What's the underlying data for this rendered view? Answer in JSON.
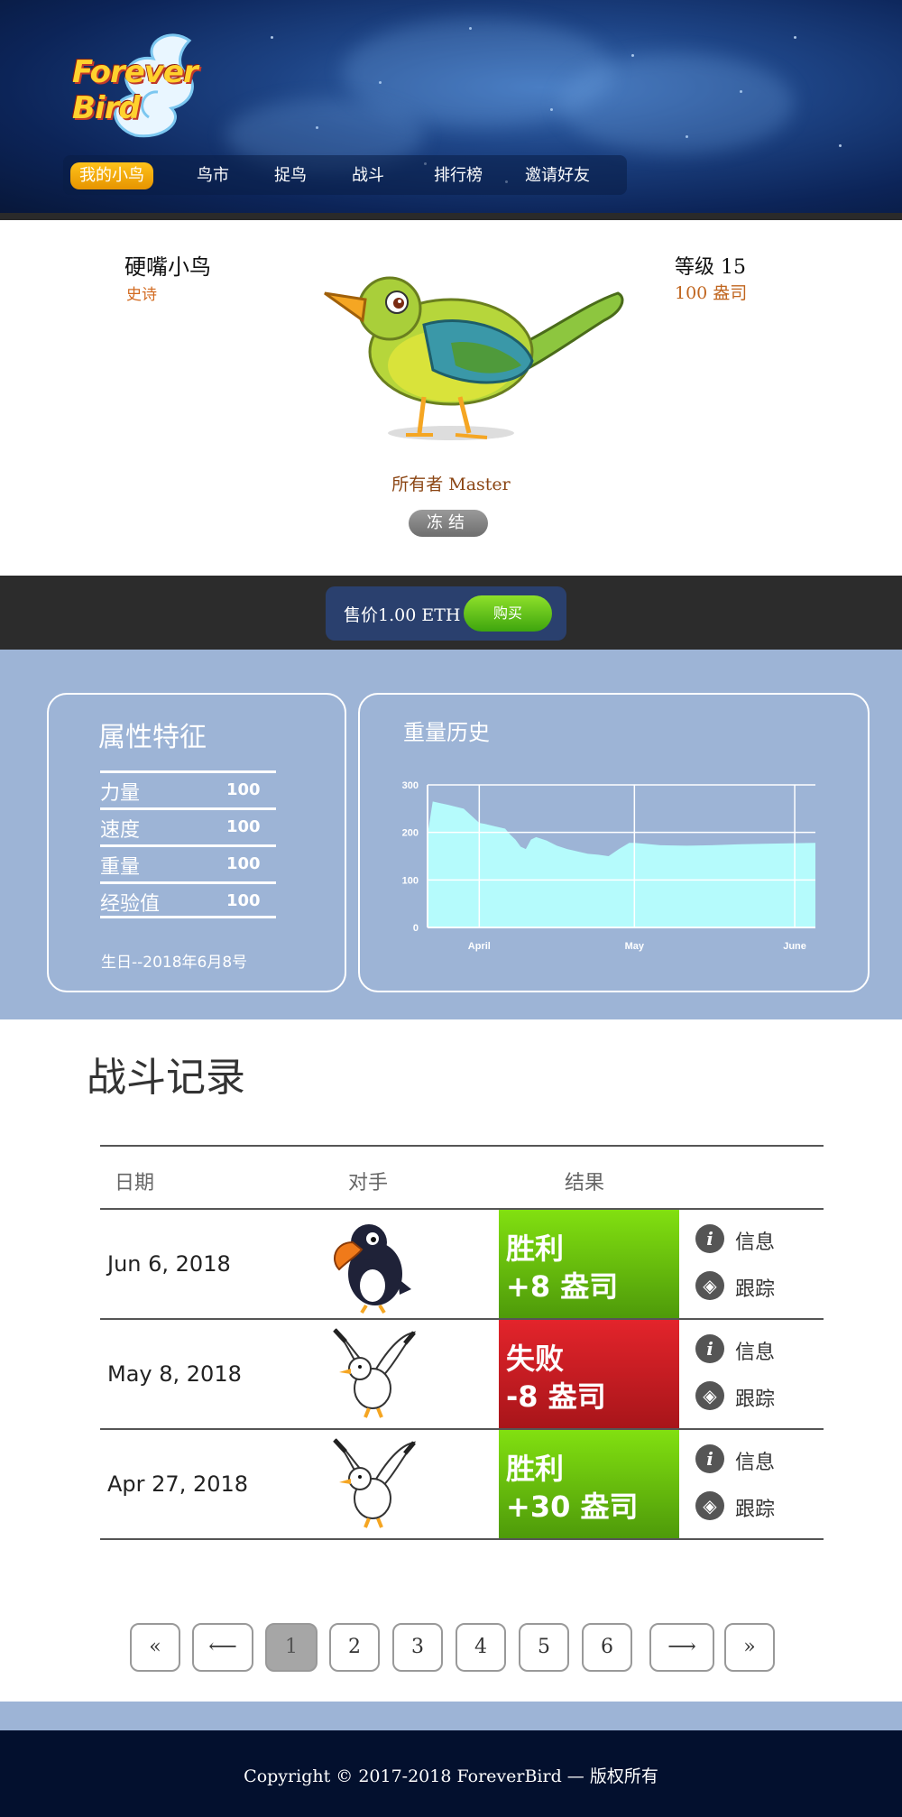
{
  "header": {
    "logo_text": "Forever Bird",
    "nav": [
      {
        "label": "我的小鸟",
        "active": true
      },
      {
        "label": "鸟市"
      },
      {
        "label": "捉鸟"
      },
      {
        "label": "战斗"
      },
      {
        "label": "排行榜"
      },
      {
        "label": "邀请好友"
      }
    ]
  },
  "bird": {
    "name": "硬嘴小鸟",
    "rarity": "史诗",
    "level_text": "等级 15",
    "coin_text": "100 盎司",
    "owner_text": "所有者 Master",
    "freeze_label": "冻结"
  },
  "sale": {
    "price_text": "售价1.00 ETH",
    "buy_label": "购买"
  },
  "attributes": {
    "title": "属性特征",
    "rows": [
      {
        "label": "力量",
        "value": "100"
      },
      {
        "label": "速度",
        "value": "100"
      },
      {
        "label": "重量",
        "value": "100"
      },
      {
        "label": "经验值",
        "value": "100"
      }
    ],
    "birthday": "生日--2018年6月8号"
  },
  "weight_history": {
    "title": "重量历史"
  },
  "chart_data": {
    "type": "area",
    "title": "重量历史",
    "ylim": [
      0,
      300
    ],
    "yticks": [
      "0",
      "100",
      "200",
      "300"
    ],
    "xtick_labels": [
      "April",
      "May",
      "June"
    ],
    "x_day_index_for_ticks": [
      10,
      40,
      71
    ],
    "x_range_days": [
      0,
      75
    ],
    "x": [
      0,
      1,
      4,
      7,
      8,
      10,
      11,
      13,
      15,
      16,
      17,
      18,
      19,
      20,
      21,
      23,
      25,
      27,
      29,
      31,
      33,
      35,
      37,
      39,
      40,
      42,
      45,
      50,
      55,
      60,
      65,
      70,
      75
    ],
    "values": [
      195,
      265,
      258,
      250,
      240,
      220,
      218,
      213,
      208,
      195,
      185,
      170,
      165,
      185,
      190,
      183,
      172,
      165,
      160,
      155,
      153,
      150,
      165,
      178,
      178,
      176,
      173,
      172,
      173,
      175,
      176,
      177,
      178
    ],
    "fill_color": "#b5fbfc",
    "grid": true
  },
  "battles": {
    "title": "战斗记录",
    "headers": [
      "日期",
      "对手",
      "结果"
    ],
    "rows": [
      {
        "date": "Jun 6, 2018",
        "result_line1": "胜利",
        "result_line2": "+8 盎司",
        "result": "win",
        "info": "信息",
        "track": "跟踪"
      },
      {
        "date": "May 8, 2018",
        "result_line1": "失败",
        "result_line2": "-8 盎司",
        "result": "lose",
        "info": "信息",
        "track": "跟踪"
      },
      {
        "date": "Apr 27, 2018",
        "result_line1": "胜利",
        "result_line2": "+30 盎司",
        "result": "win",
        "info": "信息",
        "track": "跟踪"
      }
    ]
  },
  "pagination": {
    "first": "«",
    "prev": "⟵",
    "pages": [
      "1",
      "2",
      "3",
      "4",
      "5",
      "6"
    ],
    "current": "1",
    "next": "⟶",
    "last": "»"
  },
  "footer": {
    "copyright": "Copyright © 2017-2018 ForeverBird — 版权所有"
  },
  "colors": {
    "nav_active": "#f5a90e",
    "stats_bg": "#9db4d6",
    "win": "#5fb80c",
    "lose": "#d11d23",
    "footer_bg": "#03102e",
    "buy": "#5dc10f"
  }
}
